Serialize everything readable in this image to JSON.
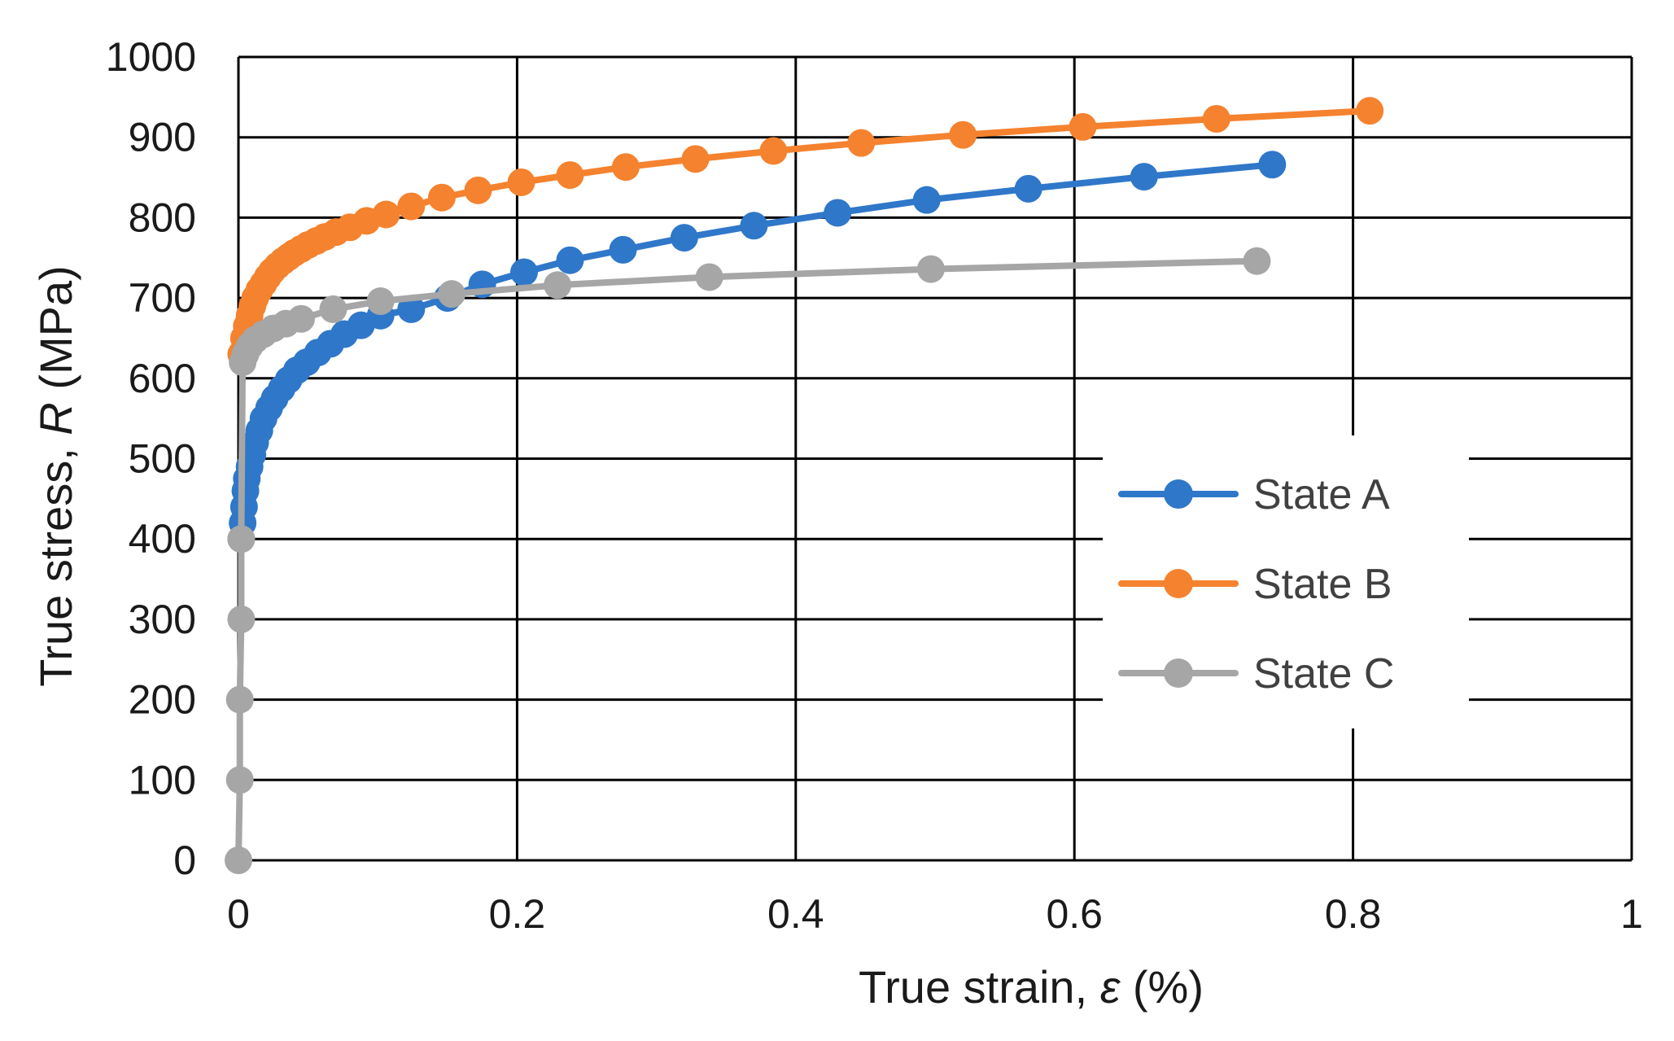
{
  "chart_data": {
    "type": "line",
    "title": "",
    "xlabel": {
      "prefix": "True strain, ",
      "symbol": "ε",
      "suffix": " (%)"
    },
    "ylabel": {
      "prefix": "True stress, ",
      "symbol": "R",
      "suffix": " (MPa)"
    },
    "xlim": [
      0,
      1
    ],
    "ylim": [
      0,
      1000
    ],
    "x_ticks": [
      0,
      0.2,
      0.4,
      0.6,
      0.8,
      1
    ],
    "x_tick_labels": [
      "0",
      "0.2",
      "0.4",
      "0.6",
      "0.8",
      "1"
    ],
    "y_ticks": [
      0,
      100,
      200,
      300,
      400,
      500,
      600,
      700,
      800,
      900,
      1000
    ],
    "y_tick_labels": [
      "0",
      "100",
      "200",
      "300",
      "400",
      "500",
      "600",
      "700",
      "800",
      "900",
      "1000"
    ],
    "grid": true,
    "legend_position": "right",
    "series": [
      {
        "name": "State A",
        "color": "#2f77c9",
        "x": [
          0.002,
          0.003,
          0.004,
          0.005,
          0.006,
          0.008,
          0.01,
          0.012,
          0.015,
          0.018,
          0.022,
          0.026,
          0.031,
          0.036,
          0.042,
          0.049,
          0.057,
          0.066,
          0.076,
          0.088,
          0.102,
          0.124,
          0.15,
          0.175,
          0.205,
          0.238,
          0.276,
          0.32,
          0.37,
          0.43,
          0.494,
          0.567,
          0.65,
          0.742
        ],
        "y": [
          400,
          420,
          440,
          460,
          475,
          490,
          505,
          520,
          535,
          550,
          563,
          575,
          587,
          598,
          610,
          620,
          632,
          643,
          655,
          666,
          678,
          686,
          700,
          717,
          732,
          747,
          760,
          775,
          790,
          806,
          822,
          836,
          851,
          866
        ]
      },
      {
        "name": "State B",
        "color": "#f5822e",
        "x": [
          0.002,
          0.004,
          0.006,
          0.008,
          0.01,
          0.012,
          0.015,
          0.018,
          0.021,
          0.024,
          0.028,
          0.032,
          0.036,
          0.04,
          0.045,
          0.05,
          0.056,
          0.062,
          0.07,
          0.08,
          0.092,
          0.106,
          0.124,
          0.146,
          0.172,
          0.203,
          0.238,
          0.278,
          0.328,
          0.384,
          0.447,
          0.52,
          0.606,
          0.702,
          0.812
        ],
        "y": [
          630,
          650,
          665,
          678,
          690,
          700,
          710,
          718,
          726,
          733,
          740,
          746,
          751,
          756,
          761,
          766,
          771,
          776,
          782,
          788,
          796,
          804,
          814,
          825,
          834,
          844,
          853,
          863,
          873,
          883,
          893,
          903,
          913,
          923,
          933
        ]
      },
      {
        "name": "State C",
        "color": "#a6a6a6",
        "x": [
          0,
          0.001,
          0.001,
          0.002,
          0.002,
          0.003,
          0.005,
          0.008,
          0.012,
          0.018,
          0.025,
          0.034,
          0.045,
          0.068,
          0.102,
          0.153,
          0.229,
          0.338,
          0.497,
          0.731
        ],
        "y": [
          0,
          100,
          200,
          300,
          400,
          620,
          630,
          640,
          648,
          655,
          662,
          668,
          674,
          686,
          696,
          705,
          716,
          726,
          736,
          746
        ]
      }
    ]
  }
}
